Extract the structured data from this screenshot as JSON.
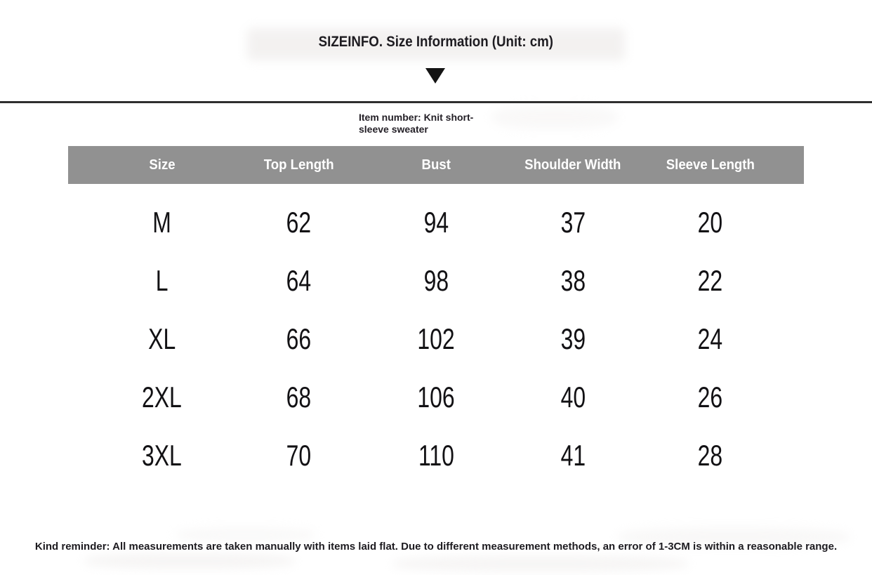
{
  "title": "SIZEINFO. Size Information (Unit: cm)",
  "item_label": "Item number: Knit short-sleeve sweater",
  "unit": "cm",
  "table": {
    "columns": [
      "Size",
      "Top Length",
      "Bust",
      "Shoulder Width",
      "Sleeve Length"
    ],
    "rows": [
      [
        "M",
        "62",
        "94",
        "37",
        "20"
      ],
      [
        "L",
        "64",
        "98",
        "38",
        "22"
      ],
      [
        "XL",
        "66",
        "102",
        "39",
        "24"
      ],
      [
        "2XL",
        "68",
        "106",
        "40",
        "26"
      ],
      [
        "3XL",
        "70",
        "110",
        "41",
        "28"
      ]
    ]
  },
  "reminder": "Kind reminder: All measurements are taken manually with items laid flat. Due to different measurement methods, an error of 1-3CM is within a reasonable range.",
  "colors": {
    "header_bg": "#919191",
    "header_text": "#ffffff",
    "divider": "#2e2e2e",
    "body_text": "#19171c"
  },
  "icons": {
    "triangle_down": "down-pointing solid triangle"
  }
}
